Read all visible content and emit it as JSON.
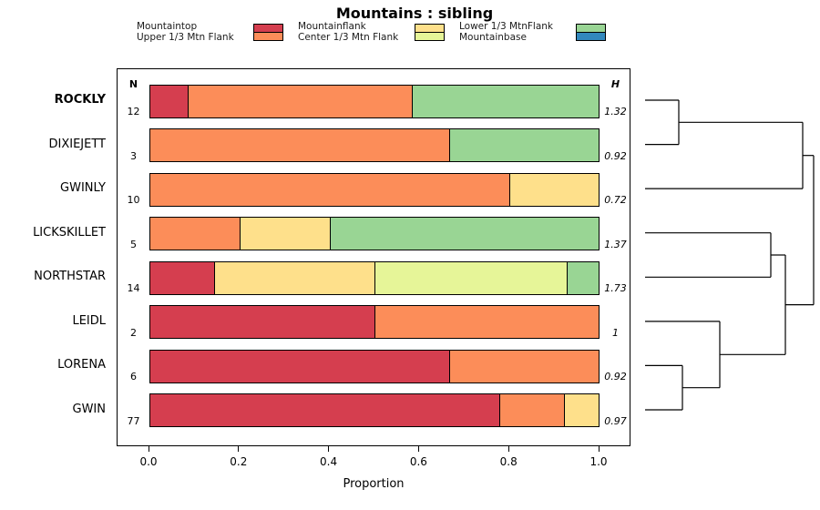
{
  "title": "Mountains : sibling",
  "chart_data": {
    "type": "bar",
    "subtype": "horizontal-stacked-with-dendrogram",
    "title": "Mountains : sibling",
    "xlabel": "Proportion",
    "xlim": [
      0,
      1
    ],
    "xticks": [
      "0.0",
      "0.2",
      "0.4",
      "0.6",
      "0.8",
      "1.0"
    ],
    "grid": false,
    "legend_position": "top",
    "n_column_header": "N",
    "h_column_header": "H",
    "categories": [
      {
        "name": "Mountaintop",
        "color": "#D53E4F"
      },
      {
        "name": "Upper 1/3 Mtn Flank",
        "color": "#FC8D59"
      },
      {
        "name": "Mountainflank",
        "color": "#FEE08B"
      },
      {
        "name": "Center 1/3 Mtn Flank",
        "color": "#E6F598"
      },
      {
        "name": "Lower 1/3 MtnFlank",
        "color": "#99D594"
      },
      {
        "name": "Mountainbase",
        "color": "#3288BD"
      }
    ],
    "legend_columns": [
      [
        0,
        1
      ],
      [
        2,
        3
      ],
      [
        4,
        5
      ]
    ],
    "rows": [
      {
        "label": "ROCKLY",
        "bold": true,
        "n": 12,
        "h": "1.32",
        "segments": [
          {
            "category": "Mountaintop",
            "value": 0.083
          },
          {
            "category": "Upper 1/3 Mtn Flank",
            "value": 0.5
          },
          {
            "category": "Lower 1/3 MtnFlank",
            "value": 0.417
          }
        ]
      },
      {
        "label": "DIXIEJETT",
        "bold": false,
        "n": 3,
        "h": "0.92",
        "segments": [
          {
            "category": "Upper 1/3 Mtn Flank",
            "value": 0.667
          },
          {
            "category": "Lower 1/3 MtnFlank",
            "value": 0.333
          }
        ]
      },
      {
        "label": "GWINLY",
        "bold": false,
        "n": 10,
        "h": "0.72",
        "segments": [
          {
            "category": "Upper 1/3 Mtn Flank",
            "value": 0.8
          },
          {
            "category": "Mountainflank",
            "value": 0.2
          }
        ]
      },
      {
        "label": "LICKSKILLET",
        "bold": false,
        "n": 5,
        "h": "1.37",
        "segments": [
          {
            "category": "Upper 1/3 Mtn Flank",
            "value": 0.2
          },
          {
            "category": "Mountainflank",
            "value": 0.2
          },
          {
            "category": "Lower 1/3 MtnFlank",
            "value": 0.6
          }
        ]
      },
      {
        "label": "NORTHSTAR",
        "bold": false,
        "n": 14,
        "h": "1.73",
        "segments": [
          {
            "category": "Mountaintop",
            "value": 0.143
          },
          {
            "category": "Mountainflank",
            "value": 0.357
          },
          {
            "category": "Center 1/3 Mtn Flank",
            "value": 0.429
          },
          {
            "category": "Lower 1/3 MtnFlank",
            "value": 0.071
          }
        ]
      },
      {
        "label": "LEIDL",
        "bold": false,
        "n": 2,
        "h": "1",
        "segments": [
          {
            "category": "Mountaintop",
            "value": 0.5
          },
          {
            "category": "Upper 1/3 Mtn Flank",
            "value": 0.5
          }
        ]
      },
      {
        "label": "LORENA",
        "bold": false,
        "n": 6,
        "h": "0.92",
        "segments": [
          {
            "category": "Mountaintop",
            "value": 0.667
          },
          {
            "category": "Upper 1/3 Mtn Flank",
            "value": 0.333
          }
        ]
      },
      {
        "label": "GWIN",
        "bold": false,
        "n": 77,
        "h": "0.97",
        "segments": [
          {
            "category": "Mountaintop",
            "value": 0.779
          },
          {
            "category": "Upper 1/3 Mtn Flank",
            "value": 0.143
          },
          {
            "category": "Mountainflank",
            "value": 0.078
          }
        ]
      }
    ],
    "dendrogram_segments": [
      [
        8,
        35,
        45,
        35
      ],
      [
        8,
        83.6,
        45,
        83.6
      ],
      [
        45,
        35,
        45,
        83.6
      ],
      [
        45,
        59.3,
        181,
        59.3
      ],
      [
        8,
        132.1,
        181,
        132.1
      ],
      [
        181,
        59.3,
        181,
        132.1
      ],
      [
        181,
        95.7,
        193,
        95.7
      ],
      [
        8,
        180.7,
        146,
        180.7
      ],
      [
        8,
        229.3,
        146,
        229.3
      ],
      [
        146,
        180.7,
        146,
        229.3
      ],
      [
        146,
        205,
        162,
        205
      ],
      [
        8,
        277.9,
        90,
        277.9
      ],
      [
        8,
        326.4,
        49,
        326.4
      ],
      [
        8,
        375,
        49,
        375
      ],
      [
        49,
        326.4,
        49,
        375
      ],
      [
        49,
        350.7,
        90,
        350.7
      ],
      [
        90,
        277.9,
        90,
        350.7
      ],
      [
        90,
        314.3,
        162,
        314.3
      ],
      [
        162,
        205,
        162,
        314.3
      ],
      [
        162,
        259.6,
        193,
        259.6
      ],
      [
        193,
        95.7,
        193,
        259.6
      ]
    ]
  }
}
